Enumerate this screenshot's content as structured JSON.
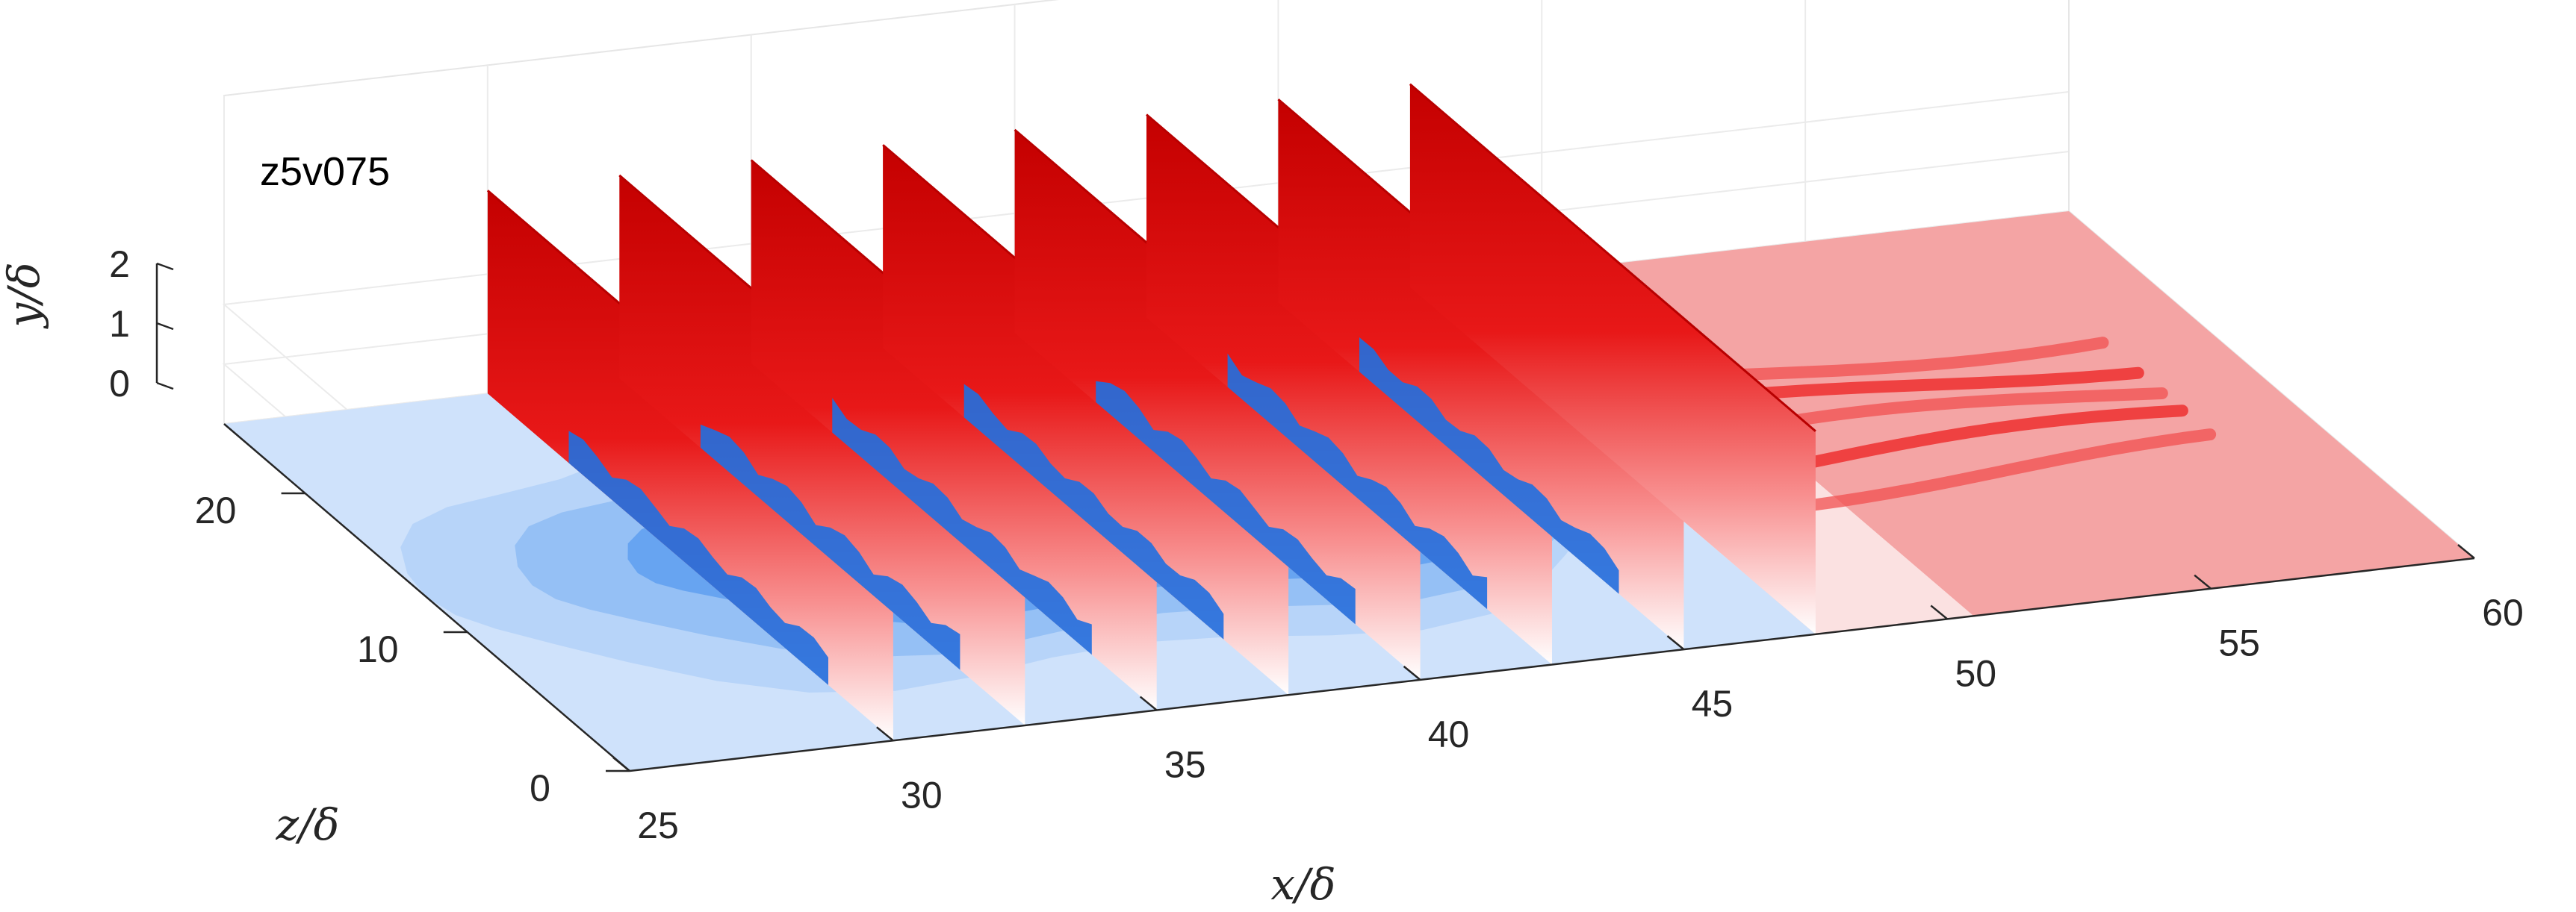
{
  "chart_data": {
    "type": "3d-surface-slices",
    "title": "z5v075",
    "xlabel": "x/δ",
    "ylabel": "y/δ",
    "zlabel": "z/δ",
    "xlim": [
      25,
      60
    ],
    "ylim": [
      0,
      2
    ],
    "zlim": [
      0,
      25
    ],
    "xticks": [
      "25",
      "30",
      "35",
      "40",
      "45",
      "50",
      "55",
      "60"
    ],
    "yticks": [
      "0",
      "1",
      "2"
    ],
    "zticks": [
      "0",
      "10",
      "20"
    ],
    "slice_x_positions": [
      30,
      32.5,
      35,
      37.5,
      40,
      42.5,
      45,
      47.5
    ],
    "grid": true,
    "colors": {
      "negative": "#0050c8",
      "positive": "#c80000",
      "neutral": "#ffffff"
    }
  }
}
